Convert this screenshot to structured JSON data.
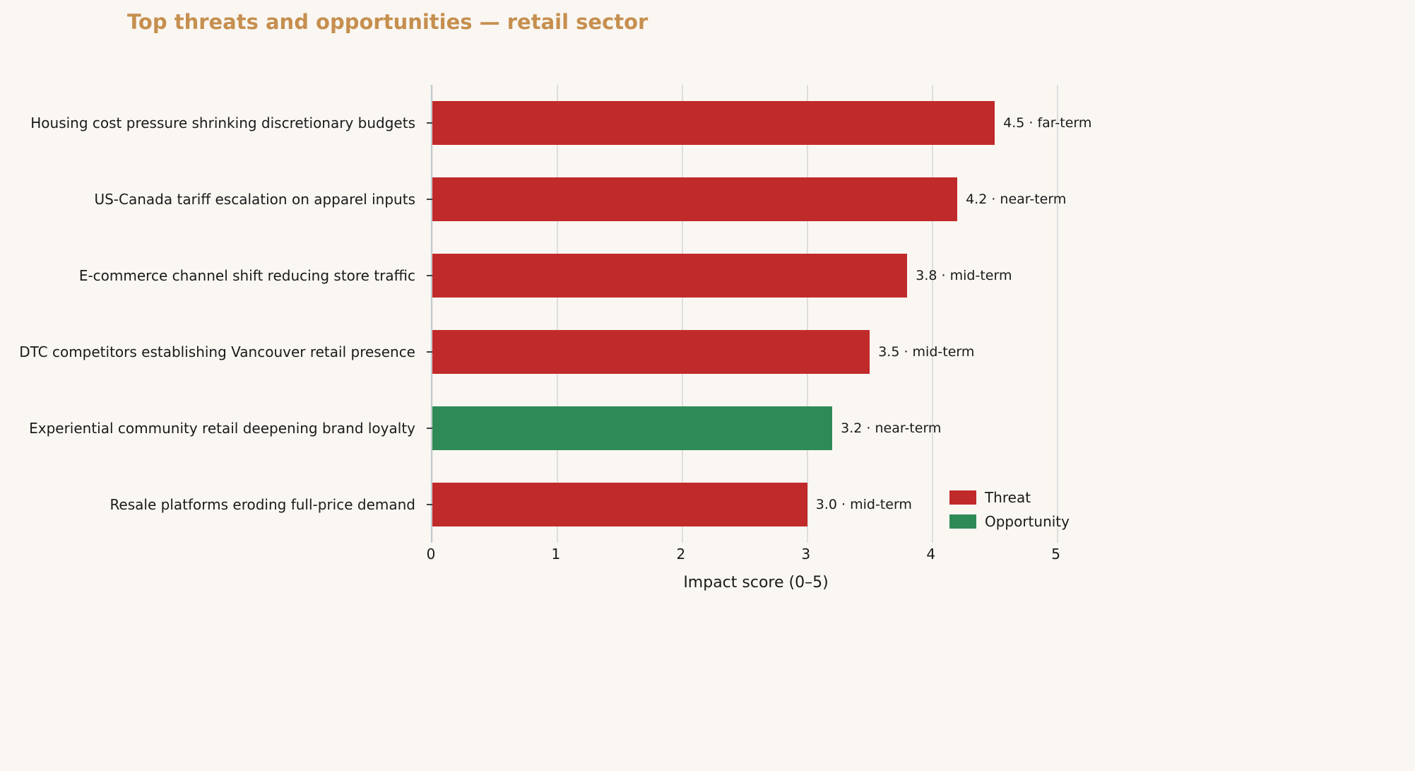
{
  "title": "Top threats and opportunities — retail sector",
  "colors": {
    "background": "#faf7f2",
    "title": "#c68f4f",
    "threat": "#c12a2a",
    "opportunity": "#2e8b57",
    "gridline": "#dedede",
    "axis_spine": "#a9bfc6"
  },
  "chart_data": {
    "type": "bar",
    "orientation": "horizontal",
    "title": "Top threats and opportunities — retail sector",
    "xlabel": "Impact score (0–5)",
    "xlim": [
      0,
      5.2
    ],
    "xticks": [
      0,
      1,
      2,
      3,
      4,
      5
    ],
    "grid": "vertical",
    "legend_position": "lower right",
    "legend": [
      {
        "label": "Threat",
        "color": "#c12a2a"
      },
      {
        "label": "Opportunity",
        "color": "#2e8b57"
      }
    ],
    "items": [
      {
        "label": "Housing cost pressure shrinking discretionary budgets",
        "value": 4.5,
        "horizon": "far-term",
        "category": "Threat"
      },
      {
        "label": "US-Canada tariff escalation on apparel inputs",
        "value": 4.2,
        "horizon": "near-term",
        "category": "Threat"
      },
      {
        "label": "E-commerce channel shift reducing store traffic",
        "value": 3.8,
        "horizon": "mid-term",
        "category": "Threat"
      },
      {
        "label": "DTC competitors establishing Vancouver retail presence",
        "value": 3.5,
        "horizon": "mid-term",
        "category": "Threat"
      },
      {
        "label": "Experiential community retail deepening brand loyalty",
        "value": 3.2,
        "horizon": "near-term",
        "category": "Opportunity"
      },
      {
        "label": "Resale platforms eroding full-price demand",
        "value": 3.0,
        "horizon": "mid-term",
        "category": "Threat"
      }
    ]
  }
}
